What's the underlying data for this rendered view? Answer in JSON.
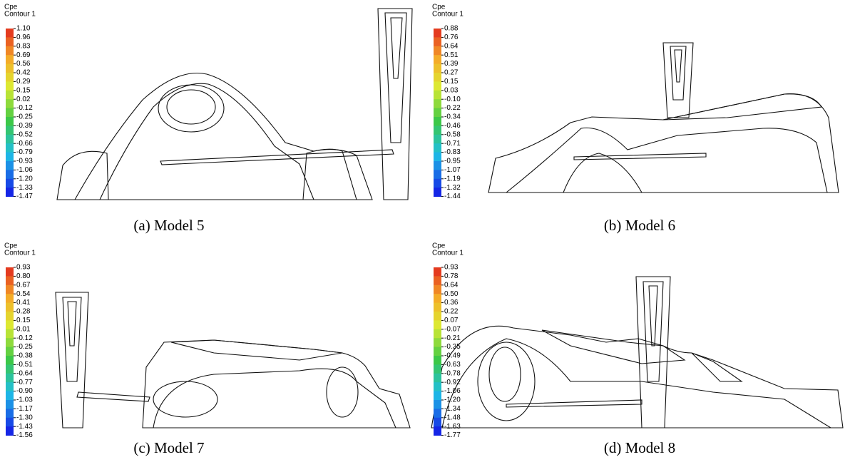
{
  "panels": [
    {
      "legend_title": "Cpe",
      "legend_subtitle": "Contour 1",
      "caption": "(a) Model 5",
      "levels": [
        "1.10",
        "0.96",
        "0.83",
        "0.69",
        "0.56",
        "0.42",
        "0.29",
        "0.15",
        "0.02",
        "-0.12",
        "-0.25",
        "-0.39",
        "-0.52",
        "-0.66",
        "-0.79",
        "-0.93",
        "-1.06",
        "-1.20",
        "-1.33",
        "-1.47"
      ]
    },
    {
      "legend_title": "Cpe",
      "legend_subtitle": "Contour 1",
      "caption": "(b) Model 6",
      "levels": [
        "0.88",
        "0.76",
        "0.64",
        "0.51",
        "0.39",
        "0.27",
        "0.15",
        "0.03",
        "-0.10",
        "-0.22",
        "-0.34",
        "-0.46",
        "-0.58",
        "-0.71",
        "-0.83",
        "-0.95",
        "-1.07",
        "-1.19",
        "-1.32",
        "-1.44"
      ]
    },
    {
      "legend_title": "Cpe",
      "legend_subtitle": "Contour 1",
      "caption": "(c) Model 7",
      "levels": [
        "0.93",
        "0.80",
        "0.67",
        "0.54",
        "0.41",
        "0.28",
        "0.15",
        "0.01",
        "-0.12",
        "-0.25",
        "-0.38",
        "-0.51",
        "-0.64",
        "-0.77",
        "-0.90",
        "-1.03",
        "-1.17",
        "-1.30",
        "-1.43",
        "-1.56"
      ]
    },
    {
      "legend_title": "Cpe",
      "legend_subtitle": "Contour 1",
      "caption": "(d) Model 8",
      "levels": [
        "0.93",
        "0.78",
        "0.64",
        "0.50",
        "0.36",
        "0.22",
        "0.07",
        "-0.07",
        "-0.21",
        "-0.35",
        "-0.49",
        "-0.63",
        "-0.78",
        "-0.92",
        "-1.06",
        "-1.20",
        "-1.34",
        "-1.48",
        "-1.63",
        "-1.77"
      ]
    }
  ]
}
